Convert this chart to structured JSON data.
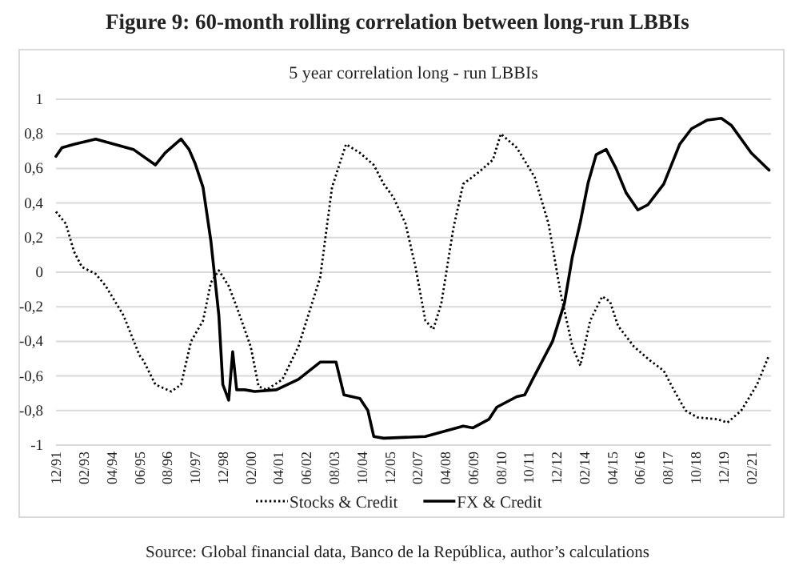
{
  "chart_data": {
    "type": "line",
    "title": "Figure 9: 60-month rolling correlation between long-run LBBIs",
    "subtitle": "5 year correlation long - run LBBIs",
    "annotations": [
      "Source: Global financial data, Banco de la República, author’s calculations"
    ],
    "xlim": [
      "1991-12",
      "2021-12"
    ],
    "xticks": [
      {
        "value": "1991-12",
        "label": "12/91"
      },
      {
        "value": "1993-02",
        "label": "02/93"
      },
      {
        "value": "1994-04",
        "label": "04/94"
      },
      {
        "value": "1995-06",
        "label": "06/95"
      },
      {
        "value": "1996-08",
        "label": "08/96"
      },
      {
        "value": "1997-10",
        "label": "10/97"
      },
      {
        "value": "1998-12",
        "label": "12/98"
      },
      {
        "value": "2000-02",
        "label": "02/00"
      },
      {
        "value": "2001-04",
        "label": "04/01"
      },
      {
        "value": "2002-06",
        "label": "06/02"
      },
      {
        "value": "2003-08",
        "label": "08/03"
      },
      {
        "value": "2004-10",
        "label": "10/04"
      },
      {
        "value": "2005-12",
        "label": "12/05"
      },
      {
        "value": "2007-02",
        "label": "02/07"
      },
      {
        "value": "2008-04",
        "label": "04/08"
      },
      {
        "value": "2009-06",
        "label": "06/09"
      },
      {
        "value": "2010-08",
        "label": "08/10"
      },
      {
        "value": "2011-10",
        "label": "10/11"
      },
      {
        "value": "2012-12",
        "label": "12/12"
      },
      {
        "value": "2014-02",
        "label": "02/14"
      },
      {
        "value": "2015-04",
        "label": "04/15"
      },
      {
        "value": "2016-06",
        "label": "06/16"
      },
      {
        "value": "2017-08",
        "label": "08/17"
      },
      {
        "value": "2018-10",
        "label": "10/18"
      },
      {
        "value": "2019-12",
        "label": "12/19"
      },
      {
        "value": "2021-02",
        "label": "02/21"
      }
    ],
    "ylim": [
      -1,
      1
    ],
    "yticks": [
      -1,
      {
        "value": -0.8,
        "label": "-0,8"
      },
      {
        "value": -0.6,
        "label": "-0,6"
      },
      {
        "value": -0.4,
        "label": "-0,4"
      },
      {
        "value": -0.2,
        "label": "-0,2"
      },
      0,
      {
        "value": 0.2,
        "label": "0,2"
      },
      {
        "value": 0.4,
        "label": "0,4"
      },
      {
        "value": 0.6,
        "label": "0,6"
      },
      {
        "value": 0.8,
        "label": "0,8"
      },
      1
    ],
    "grid": "y",
    "legend": "bottom",
    "series": [
      {
        "name": "Stocks & Credit",
        "color": "#000000",
        "line_style": "dotted",
        "x": [
          "1991-12",
          "1992-05",
          "1992-09",
          "1993-01",
          "1993-08",
          "1994-01",
          "1994-10",
          "1995-06",
          "1995-08",
          "1996-02",
          "1996-10",
          "1997-03",
          "1997-08",
          "1998-02",
          "1998-06",
          "1998-10",
          "1999-03",
          "1999-07",
          "2000-02",
          "2000-06",
          "2000-10",
          "2001-06",
          "2002-02",
          "2003-01",
          "2003-07",
          "2004-02",
          "2004-09",
          "2005-04",
          "2005-09",
          "2006-02",
          "2006-08",
          "2007-01",
          "2007-06",
          "2007-10",
          "2008-02",
          "2008-08",
          "2009-01",
          "2009-09",
          "2010-04",
          "2010-08",
          "2011-04",
          "2012-01",
          "2012-08",
          "2013-02",
          "2013-08",
          "2013-12",
          "2014-05",
          "2014-11",
          "2015-03",
          "2015-07",
          "2016-03",
          "2016-11",
          "2017-06",
          "2017-11",
          "2018-05",
          "2018-11",
          "2019-09",
          "2020-02",
          "2020-09",
          "2021-05",
          "2021-11"
        ],
        "values": [
          0.35,
          0.28,
          0.12,
          0.03,
          -0.01,
          -0.08,
          -0.25,
          -0.48,
          -0.51,
          -0.65,
          -0.69,
          -0.65,
          -0.4,
          -0.28,
          -0.06,
          0.01,
          -0.08,
          -0.2,
          -0.43,
          -0.66,
          -0.68,
          -0.62,
          -0.43,
          -0.03,
          0.49,
          0.74,
          0.69,
          0.62,
          0.51,
          0.43,
          0.28,
          0.03,
          -0.28,
          -0.33,
          -0.18,
          0.25,
          0.51,
          0.58,
          0.65,
          0.8,
          0.72,
          0.55,
          0.28,
          -0.12,
          -0.43,
          -0.54,
          -0.28,
          -0.14,
          -0.17,
          -0.31,
          -0.43,
          -0.51,
          -0.57,
          -0.68,
          -0.8,
          -0.84,
          -0.85,
          -0.87,
          -0.8,
          -0.65,
          -0.48
        ]
      },
      {
        "name": "FX & Credit",
        "color": "#000000",
        "line_style": "solid",
        "x": [
          "1991-12",
          "1992-03",
          "1992-09",
          "1993-08",
          "1995-03",
          "1996-02",
          "1996-07",
          "1997-03",
          "1997-07",
          "1997-10",
          "1998-02",
          "1998-06",
          "1998-10",
          "1998-12",
          "1999-03",
          "1999-05",
          "1999-07",
          "1999-11",
          "2000-04",
          "2001-03",
          "2002-02",
          "2003-01",
          "2003-09",
          "2004-01",
          "2004-09",
          "2005-01",
          "2005-04",
          "2005-09",
          "2007-06",
          "2009-01",
          "2009-06",
          "2010-02",
          "2010-06",
          "2011-04",
          "2011-08",
          "2011-12",
          "2012-10",
          "2013-04",
          "2013-08",
          "2013-12",
          "2014-04",
          "2014-08",
          "2015-01",
          "2015-06",
          "2015-11",
          "2016-05",
          "2016-10",
          "2017-06",
          "2018-02",
          "2018-08",
          "2019-04",
          "2019-11",
          "2020-04",
          "2021-02",
          "2021-11"
        ],
        "values": [
          0.67,
          0.72,
          0.74,
          0.77,
          0.71,
          0.62,
          0.69,
          0.77,
          0.71,
          0.63,
          0.49,
          0.18,
          -0.25,
          -0.65,
          -0.74,
          -0.46,
          -0.68,
          -0.68,
          -0.69,
          -0.68,
          -0.62,
          -0.52,
          -0.52,
          -0.71,
          -0.73,
          -0.8,
          -0.95,
          -0.96,
          -0.95,
          -0.89,
          -0.9,
          -0.85,
          -0.78,
          -0.72,
          -0.71,
          -0.62,
          -0.4,
          -0.18,
          0.09,
          0.29,
          0.52,
          0.68,
          0.71,
          0.6,
          0.46,
          0.36,
          0.39,
          0.51,
          0.74,
          0.83,
          0.88,
          0.89,
          0.85,
          0.69,
          0.59
        ]
      }
    ]
  }
}
